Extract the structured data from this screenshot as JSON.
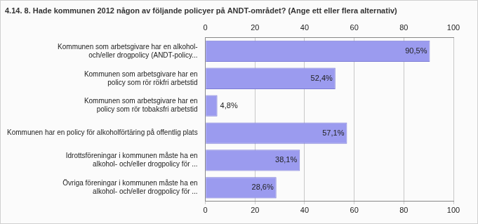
{
  "chart_data": {
    "type": "bar",
    "orientation": "horizontal",
    "title": "4.14. 8. Hade kommunen 2012 någon av följande policyer på ANDT-området? (Ange ett eller flera alternativ)",
    "categories": [
      [
        "Kommunen som arbetsgivare har en alkohol-",
        "och/eller drogpolicy (ANDT-policy..."
      ],
      [
        "Kommunen som arbetsgivare har en",
        "policy som rör rökfri arbetstid"
      ],
      [
        "Kommunen som arbetsgivare har en",
        "policy som rör tobaksfri arbetstid"
      ],
      "Kommunen har en policy för alkoholförtäring på offentlig plats",
      [
        "Idrottsföreningar i kommunen måste ha en",
        "alkohol- och/eller drogpolicy för ..."
      ],
      [
        "Övriga föreningar i kommunen måste ha en",
        "alkohol- och/eller drogpolicy för ..."
      ]
    ],
    "values": [
      90.5,
      52.4,
      4.8,
      57.1,
      38.1,
      28.6
    ],
    "value_labels": [
      "90,5%",
      "52,4%",
      "4,8%",
      "57,1%",
      "38,1%",
      "28,6%"
    ],
    "data_labels": true,
    "color": "#9b9bef",
    "xlim": [
      0,
      100
    ],
    "xticks": [
      0,
      20,
      40,
      60,
      80,
      100
    ],
    "grid": true
  }
}
